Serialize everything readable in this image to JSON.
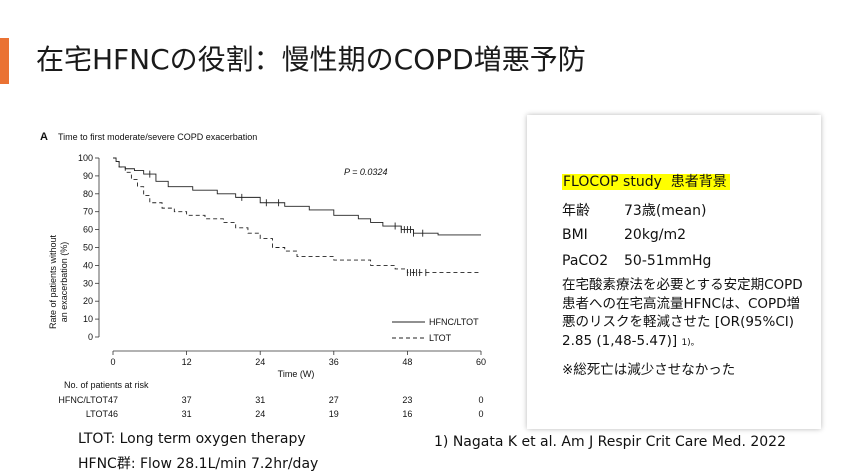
{
  "slide": {
    "title": "在宅HFNCの役割：慢性期のCOPD増悪予防"
  },
  "chart_data": {
    "type": "line",
    "panel_label": "A",
    "title": "Time to first moderate/severe COPD exacerbation",
    "xlabel": "Time (W)",
    "ylabel_line1": "Rate of patients without",
    "ylabel_line2": "an exacerbation (%)",
    "xlim": [
      0,
      60
    ],
    "ylim": [
      0,
      100
    ],
    "x_ticks": [
      "0",
      "12",
      "24",
      "36",
      "48",
      "60"
    ],
    "y_ticks": [
      "0",
      "10",
      "20",
      "30",
      "40",
      "50",
      "60",
      "70",
      "80",
      "90",
      "100"
    ],
    "p_value": "P = 0.0324",
    "series": [
      {
        "name": "HFNC/LTOT",
        "style": "solid",
        "x": [
          0,
          0.5,
          1,
          2,
          3.5,
          5,
          7,
          9,
          13,
          17,
          20,
          24,
          28,
          32,
          36,
          40,
          42,
          44,
          47,
          49,
          53,
          60
        ],
        "y": [
          100,
          98,
          95,
          94,
          93,
          91,
          87,
          84,
          82,
          80,
          78,
          75,
          73,
          71,
          68,
          66,
          64,
          62,
          60,
          58,
          57,
          57
        ],
        "censor_x": [
          6,
          21,
          25,
          27,
          46,
          47,
          47.5,
          48,
          48.5,
          49,
          50.5
        ]
      },
      {
        "name": "LTOT",
        "style": "dashed",
        "x": [
          0,
          0.5,
          1,
          2,
          3,
          4,
          5,
          6,
          8,
          10,
          12,
          15,
          18,
          20,
          22,
          24,
          26,
          28,
          30,
          36,
          42,
          46,
          48,
          60
        ],
        "y": [
          100,
          98,
          95,
          92,
          88,
          84,
          79,
          75,
          72,
          70,
          68,
          66,
          64,
          61,
          58,
          55,
          50,
          48,
          45,
          43,
          40,
          38,
          36,
          36
        ],
        "censor_x": [
          48,
          48.5,
          49,
          49.5,
          50,
          51
        ]
      }
    ],
    "legend_position": "bottom-right",
    "risk_table": {
      "header": "No. of patients at risk",
      "rows": [
        {
          "label": "HFNC/LTOT",
          "values": [
            "47",
            "37",
            "31",
            "27",
            "23",
            "0"
          ]
        },
        {
          "label": "LTOT",
          "values": [
            "46",
            "31",
            "24",
            "19",
            "16",
            "0"
          ]
        }
      ]
    }
  },
  "footnotes": {
    "ltot": "LTOT: Long term oxygen therapy",
    "hfnc": "HFNC群: Flow 28.1L/min 7.2hr/day"
  },
  "info": {
    "study_name": "FLOCOP study",
    "study_sub": "患者背景",
    "age_label": "年齢",
    "age_value": "73歳(mean)",
    "bmi_label": "BMI",
    "bmi_value": "20kg/m2",
    "paco2_label": "PaCO2",
    "paco2_value": "50-51mmHg",
    "conclusion": "在宅酸素療法を必要とする安定期COPD患者への在宅高流量HFNCは、COPD増悪のリスクを軽減させた [OR(95%CI) 2.85 (1,48-5.47)]",
    "conclusion_ref": "1)。",
    "mortality": "※総死亡は減少させなかった"
  },
  "reference": "1)  Nagata K et al. Am J Respir Crit Care Med. 2022",
  "colors": {
    "accent": "#ea7233",
    "highlight": "#ffff00"
  }
}
